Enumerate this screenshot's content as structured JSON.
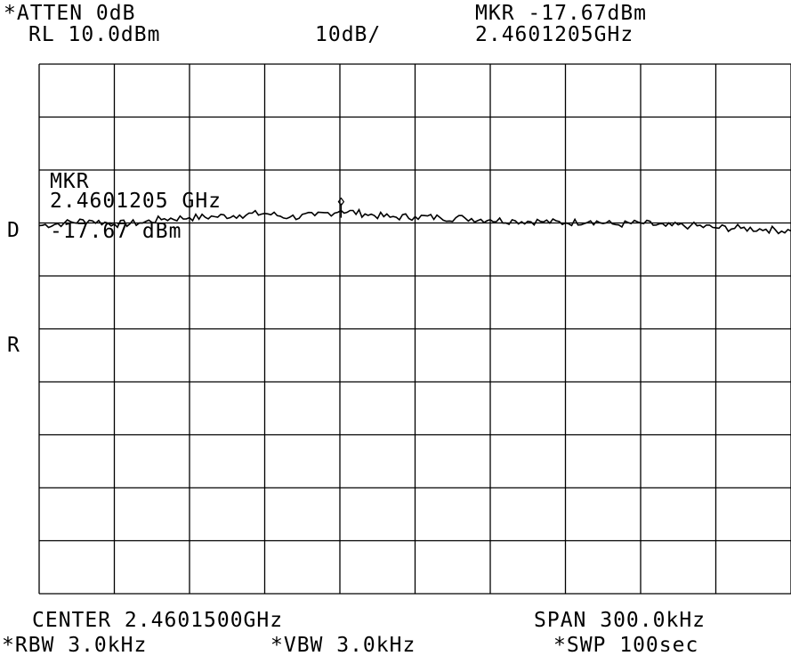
{
  "header": {
    "atten": "*ATTEN 0dB",
    "ref_level": "RL 10.0dBm",
    "scale": "10dB/",
    "marker_level": "MKR -17.67dBm",
    "marker_freq": "2.4601205GHz"
  },
  "side": {
    "d_label": "D",
    "r_label": "R"
  },
  "marker_annotation": {
    "label": "MKR",
    "freq": "2.4601205 GHz",
    "level": "-17.67 dBm"
  },
  "footer": {
    "center": "CENTER 2.4601500GHz",
    "span": "SPAN 300.0kHz",
    "rbw": "*RBW 3.0kHz",
    "vbw": "*VBW 3.0kHz",
    "sweep": "*SWP 100sec"
  },
  "chart_data": {
    "type": "line",
    "x_unit": "MHz",
    "y_unit": "dBm",
    "xlim": [
      2460.0,
      2460.3
    ],
    "ylim": [
      -90,
      10
    ],
    "grid": true,
    "series": [
      {
        "x": [
          2460.0,
          2460.01,
          2460.02,
          2460.03,
          2460.04,
          2460.05,
          2460.06,
          2460.07,
          2460.08,
          2460.09,
          2460.1,
          2460.11,
          2460.1205,
          2460.13,
          2460.14,
          2460.15,
          2460.16,
          2460.17,
          2460.18,
          2460.19,
          2460.2,
          2460.21,
          2460.22,
          2460.23,
          2460.24,
          2460.25,
          2460.26,
          2460.27,
          2460.28,
          2460.29,
          2460.3
        ],
        "y": [
          -20.5,
          -20.0,
          -19.5,
          -20.2,
          -20.0,
          -19.2,
          -19.0,
          -18.8,
          -18.5,
          -18.2,
          -18.9,
          -18.6,
          -17.67,
          -18.3,
          -18.9,
          -18.8,
          -19.0,
          -19.1,
          -19.4,
          -19.6,
          -19.7,
          -20.0,
          -19.6,
          -20.3,
          -20.0,
          -20.6,
          -20.5,
          -20.9,
          -21.0,
          -21.2,
          -21.5
        ]
      }
    ],
    "marker": {
      "x": 2460.1205,
      "y": -17.67
    }
  }
}
